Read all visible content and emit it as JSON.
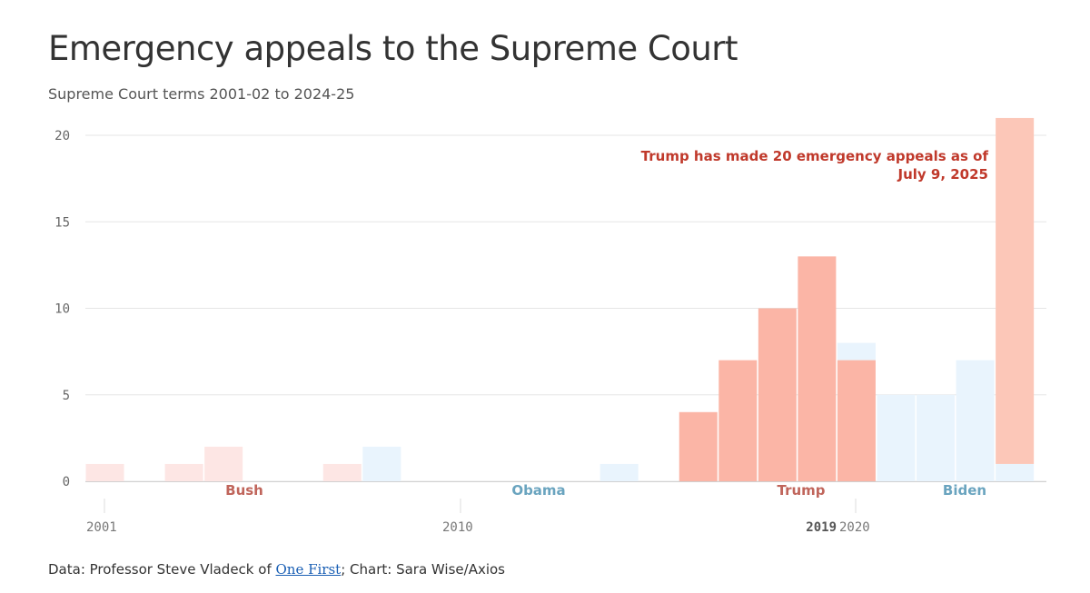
{
  "header": {
    "title": "Emergency appeals to the Supreme Court",
    "subtitle": "Supreme Court terms 2001-02 to 2024-25"
  },
  "footer": {
    "prefix": "Data: Professor Steve Vladeck of ",
    "link_text": "One First",
    "suffix": "; Chart: Sara Wise/Axios"
  },
  "colors": {
    "republican_strong": "#fbb5a6",
    "republican_faint": "#fde6e4",
    "democrat_faint": "#e9f4fd",
    "republican_label": "#c0655b",
    "democrat_label": "#6aa4bf",
    "trump_2025_bar": "#fcc7b8",
    "annotation": "#c0392b"
  },
  "chart_data": {
    "type": "bar",
    "x_tick_labels": [
      "2001",
      "2010",
      "2019",
      "2020"
    ],
    "y_ticks": [
      0,
      5,
      10,
      15,
      20
    ],
    "ylim": [
      0,
      21
    ],
    "grid": true,
    "presidents": [
      {
        "name": "Bush",
        "party": "republican"
      },
      {
        "name": "Obama",
        "party": "democrat"
      },
      {
        "name": "Trump",
        "party": "republican"
      },
      {
        "name": "Biden",
        "party": "democrat"
      }
    ],
    "terms": [
      2001,
      2002,
      2003,
      2004,
      2005,
      2006,
      2007,
      2008,
      2009,
      2010,
      2011,
      2012,
      2013,
      2014,
      2015,
      2016,
      2017,
      2018,
      2019,
      2020,
      2021,
      2022,
      2023,
      2024
    ],
    "series": [
      {
        "name": "Bush",
        "values": [
          1,
          0,
          1,
          2,
          0,
          0,
          1,
          0,
          0,
          0,
          0,
          0,
          0,
          0,
          0,
          0,
          0,
          0,
          0,
          0,
          0,
          0,
          0,
          0
        ]
      },
      {
        "name": "Obama",
        "values": [
          0,
          0,
          0,
          0,
          0,
          0,
          0,
          2,
          0,
          0,
          0,
          0,
          0,
          1,
          0,
          0,
          0,
          0,
          0,
          0,
          0,
          0,
          0,
          0
        ]
      },
      {
        "name": "Trump",
        "values": [
          0,
          0,
          0,
          0,
          0,
          0,
          0,
          0,
          0,
          0,
          0,
          0,
          0,
          0,
          0,
          4,
          7,
          10,
          13,
          7,
          0,
          0,
          0,
          20
        ]
      },
      {
        "name": "Biden",
        "values": [
          0,
          0,
          0,
          0,
          0,
          0,
          0,
          0,
          0,
          0,
          0,
          0,
          0,
          0,
          0,
          0,
          0,
          0,
          0,
          8,
          5,
          5,
          7,
          1
        ]
      }
    ],
    "annotation": {
      "line1": "Trump has made 20 emergency appeals as of",
      "line2": "July 9, 2025"
    }
  }
}
